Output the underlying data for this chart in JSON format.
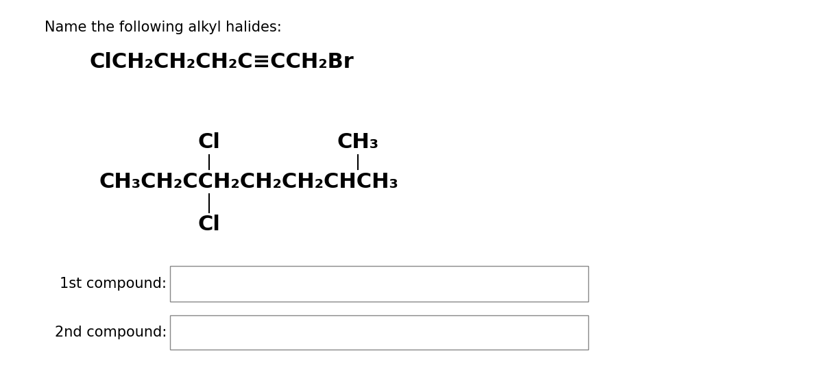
{
  "background_color": "#ffffff",
  "title_text": "Name the following alkyl halides:",
  "title_fontsize": 15,
  "compound1_text": "ClCH₂CH₂CH₂C≡CCH₂Br",
  "compound1_fontsize": 22,
  "compound2_text": "CH₃CH₂CCH₂CH₂CH₂CHCH₃",
  "compound2_fontsize": 22,
  "cl_top_text": "Cl",
  "cl_bot_text": "Cl",
  "ch3_top_text": "CH₃",
  "substituent_fontsize": 22,
  "label1_text": "1st compound:",
  "label2_text": "2nd compound:",
  "label_fontsize": 15,
  "figwidth": 11.96,
  "figheight": 5.5,
  "dpi": 100
}
